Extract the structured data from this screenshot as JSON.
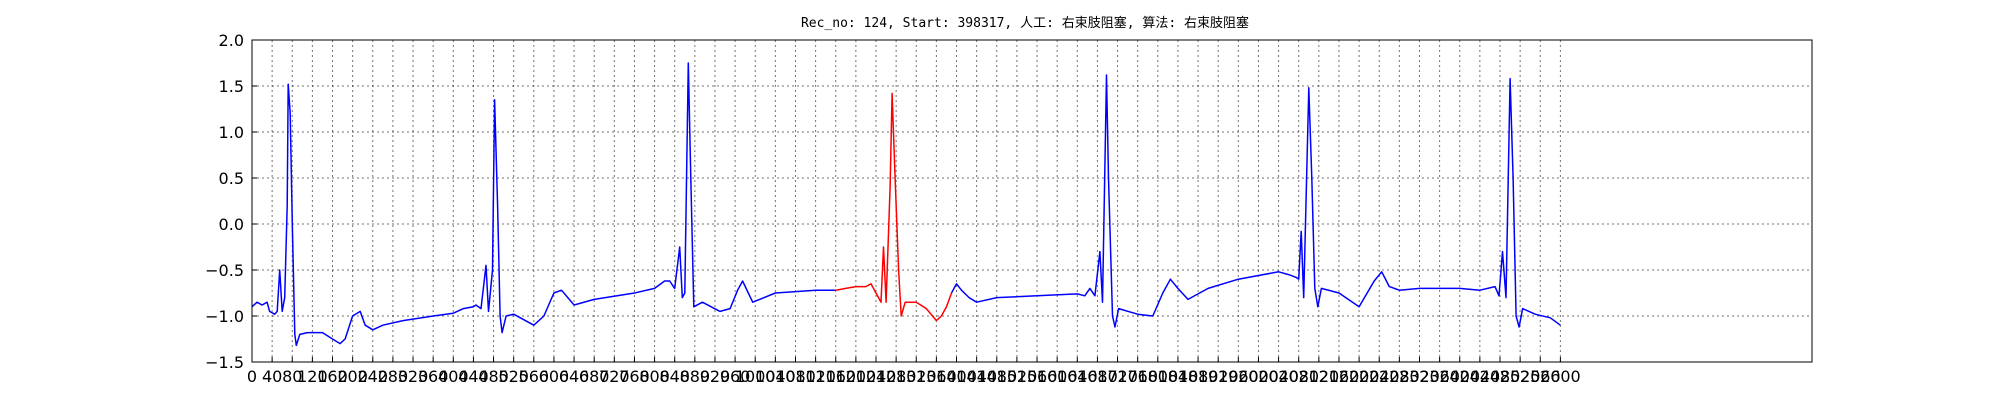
{
  "chart_data": {
    "type": "line",
    "title": "Rec_no: 124, Start: 398317, 人工: 右束肢阻塞, 算法: 右束肢阻塞",
    "xlabel": "",
    "ylabel": "",
    "xlim": [
      0,
      3100
    ],
    "ylim": [
      -1.5,
      2.0
    ],
    "grid": true,
    "xticks": [
      0,
      40,
      80,
      120,
      160,
      200,
      240,
      280,
      320,
      360,
      400,
      440,
      480,
      520,
      560,
      600,
      640,
      680,
      720,
      760,
      800,
      840,
      880,
      920,
      960,
      1000,
      1040,
      1080,
      1120,
      1160,
      1200,
      1240,
      1280,
      1320,
      1360,
      1400,
      1440,
      1480,
      1520,
      1560,
      1600,
      1640,
      1680,
      1720,
      1760,
      1800,
      1840,
      1880,
      1920,
      1960,
      2000,
      2040,
      2080,
      2120,
      2160,
      2200,
      2240,
      2280,
      2320,
      2360,
      2400,
      2440,
      2480,
      2520,
      2560,
      2600
    ],
    "yticks": [
      -1.5,
      -1.0,
      -0.5,
      0.0,
      0.5,
      1.0,
      1.5,
      2.0
    ],
    "ytick_labels": [
      "−1.5",
      "−1.0",
      "−0.5",
      "0.0",
      "0.5",
      "1.0",
      "1.5",
      "2.0"
    ],
    "series": [
      {
        "color": "#0000ff",
        "points": [
          [
            0,
            -0.9
          ],
          [
            10,
            -0.85
          ],
          [
            20,
            -0.88
          ],
          [
            30,
            -0.85
          ],
          [
            35,
            -0.95
          ],
          [
            45,
            -0.98
          ],
          [
            50,
            -0.95
          ],
          [
            55,
            -0.5
          ],
          [
            60,
            -0.95
          ],
          [
            65,
            -0.8
          ],
          [
            70,
            0.2
          ],
          [
            72,
            1.52
          ],
          [
            76,
            1.2
          ],
          [
            80,
            0.0
          ],
          [
            85,
            -1.2
          ],
          [
            88,
            -1.32
          ],
          [
            95,
            -1.2
          ],
          [
            110,
            -1.18
          ],
          [
            140,
            -1.18
          ],
          [
            160,
            -1.25
          ],
          [
            175,
            -1.3
          ],
          [
            185,
            -1.25
          ],
          [
            200,
            -1.0
          ],
          [
            215,
            -0.95
          ],
          [
            225,
            -1.1
          ],
          [
            240,
            -1.15
          ],
          [
            260,
            -1.1
          ],
          [
            300,
            -1.05
          ],
          [
            360,
            -1.0
          ],
          [
            400,
            -0.97
          ],
          [
            420,
            -0.92
          ],
          [
            440,
            -0.9
          ],
          [
            445,
            -0.88
          ],
          [
            455,
            -0.92
          ],
          [
            465,
            -0.45
          ],
          [
            470,
            -0.95
          ],
          [
            478,
            -0.5
          ],
          [
            482,
            1.35
          ],
          [
            488,
            0.2
          ],
          [
            493,
            -1.0
          ],
          [
            497,
            -1.18
          ],
          [
            505,
            -1.0
          ],
          [
            520,
            -0.98
          ],
          [
            560,
            -1.1
          ],
          [
            580,
            -1.0
          ],
          [
            600,
            -0.75
          ],
          [
            615,
            -0.72
          ],
          [
            640,
            -0.88
          ],
          [
            680,
            -0.82
          ],
          [
            760,
            -0.75
          ],
          [
            800,
            -0.7
          ],
          [
            820,
            -0.62
          ],
          [
            830,
            -0.62
          ],
          [
            840,
            -0.7
          ],
          [
            850,
            -0.25
          ],
          [
            855,
            -0.8
          ],
          [
            860,
            -0.75
          ],
          [
            867,
            1.75
          ],
          [
            872,
            0.5
          ],
          [
            878,
            -0.9
          ],
          [
            895,
            -0.85
          ],
          [
            930,
            -0.95
          ],
          [
            950,
            -0.92
          ],
          [
            965,
            -0.72
          ],
          [
            975,
            -0.62
          ],
          [
            995,
            -0.85
          ],
          [
            1040,
            -0.75
          ],
          [
            1120,
            -0.72
          ],
          [
            1160,
            -0.72
          ]
        ]
      },
      {
        "color": "#ff0000",
        "points": [
          [
            1160,
            -0.72
          ],
          [
            1180,
            -0.7
          ],
          [
            1200,
            -0.68
          ],
          [
            1220,
            -0.68
          ],
          [
            1230,
            -0.65
          ],
          [
            1240,
            -0.75
          ],
          [
            1250,
            -0.85
          ],
          [
            1255,
            -0.25
          ],
          [
            1260,
            -0.85
          ],
          [
            1268,
            0.4
          ],
          [
            1272,
            1.42
          ],
          [
            1278,
            0.5
          ],
          [
            1285,
            -0.5
          ],
          [
            1290,
            -1.0
          ],
          [
            1298,
            -0.85
          ],
          [
            1320,
            -0.85
          ],
          [
            1340,
            -0.92
          ],
          [
            1360,
            -1.05
          ],
          [
            1370,
            -1.0
          ],
          [
            1380,
            -0.9
          ],
          [
            1390,
            -0.75
          ]
        ]
      },
      {
        "color": "#0000ff",
        "points": [
          [
            1390,
            -0.75
          ],
          [
            1400,
            -0.65
          ],
          [
            1410,
            -0.72
          ],
          [
            1425,
            -0.8
          ],
          [
            1440,
            -0.85
          ],
          [
            1480,
            -0.8
          ],
          [
            1560,
            -0.78
          ],
          [
            1640,
            -0.76
          ],
          [
            1655,
            -0.78
          ],
          [
            1665,
            -0.7
          ],
          [
            1675,
            -0.78
          ],
          [
            1685,
            -0.3
          ],
          [
            1690,
            -0.85
          ],
          [
            1698,
            1.62
          ],
          [
            1702,
            0.5
          ],
          [
            1710,
            -1.0
          ],
          [
            1715,
            -1.12
          ],
          [
            1722,
            -0.92
          ],
          [
            1760,
            -0.98
          ],
          [
            1790,
            -1.0
          ],
          [
            1810,
            -0.75
          ],
          [
            1825,
            -0.6
          ],
          [
            1840,
            -0.7
          ],
          [
            1860,
            -0.82
          ],
          [
            1900,
            -0.7
          ],
          [
            1960,
            -0.6
          ],
          [
            2040,
            -0.52
          ],
          [
            2060,
            -0.55
          ],
          [
            2075,
            -0.58
          ],
          [
            2080,
            -0.6
          ],
          [
            2085,
            -0.08
          ],
          [
            2090,
            -0.8
          ],
          [
            2100,
            1.48
          ],
          [
            2106,
            0.5
          ],
          [
            2112,
            -0.7
          ],
          [
            2118,
            -0.9
          ],
          [
            2125,
            -0.7
          ],
          [
            2160,
            -0.75
          ],
          [
            2200,
            -0.9
          ],
          [
            2230,
            -0.62
          ],
          [
            2245,
            -0.52
          ],
          [
            2260,
            -0.68
          ],
          [
            2280,
            -0.72
          ],
          [
            2320,
            -0.7
          ],
          [
            2400,
            -0.7
          ],
          [
            2440,
            -0.72
          ],
          [
            2470,
            -0.68
          ],
          [
            2478,
            -0.78
          ],
          [
            2485,
            -0.3
          ],
          [
            2492,
            -0.8
          ],
          [
            2500,
            1.58
          ],
          [
            2506,
            0.5
          ],
          [
            2512,
            -1.0
          ],
          [
            2518,
            -1.12
          ],
          [
            2525,
            -0.92
          ],
          [
            2550,
            -0.98
          ],
          [
            2580,
            -1.02
          ],
          [
            2600,
            -1.1
          ]
        ]
      }
    ]
  }
}
